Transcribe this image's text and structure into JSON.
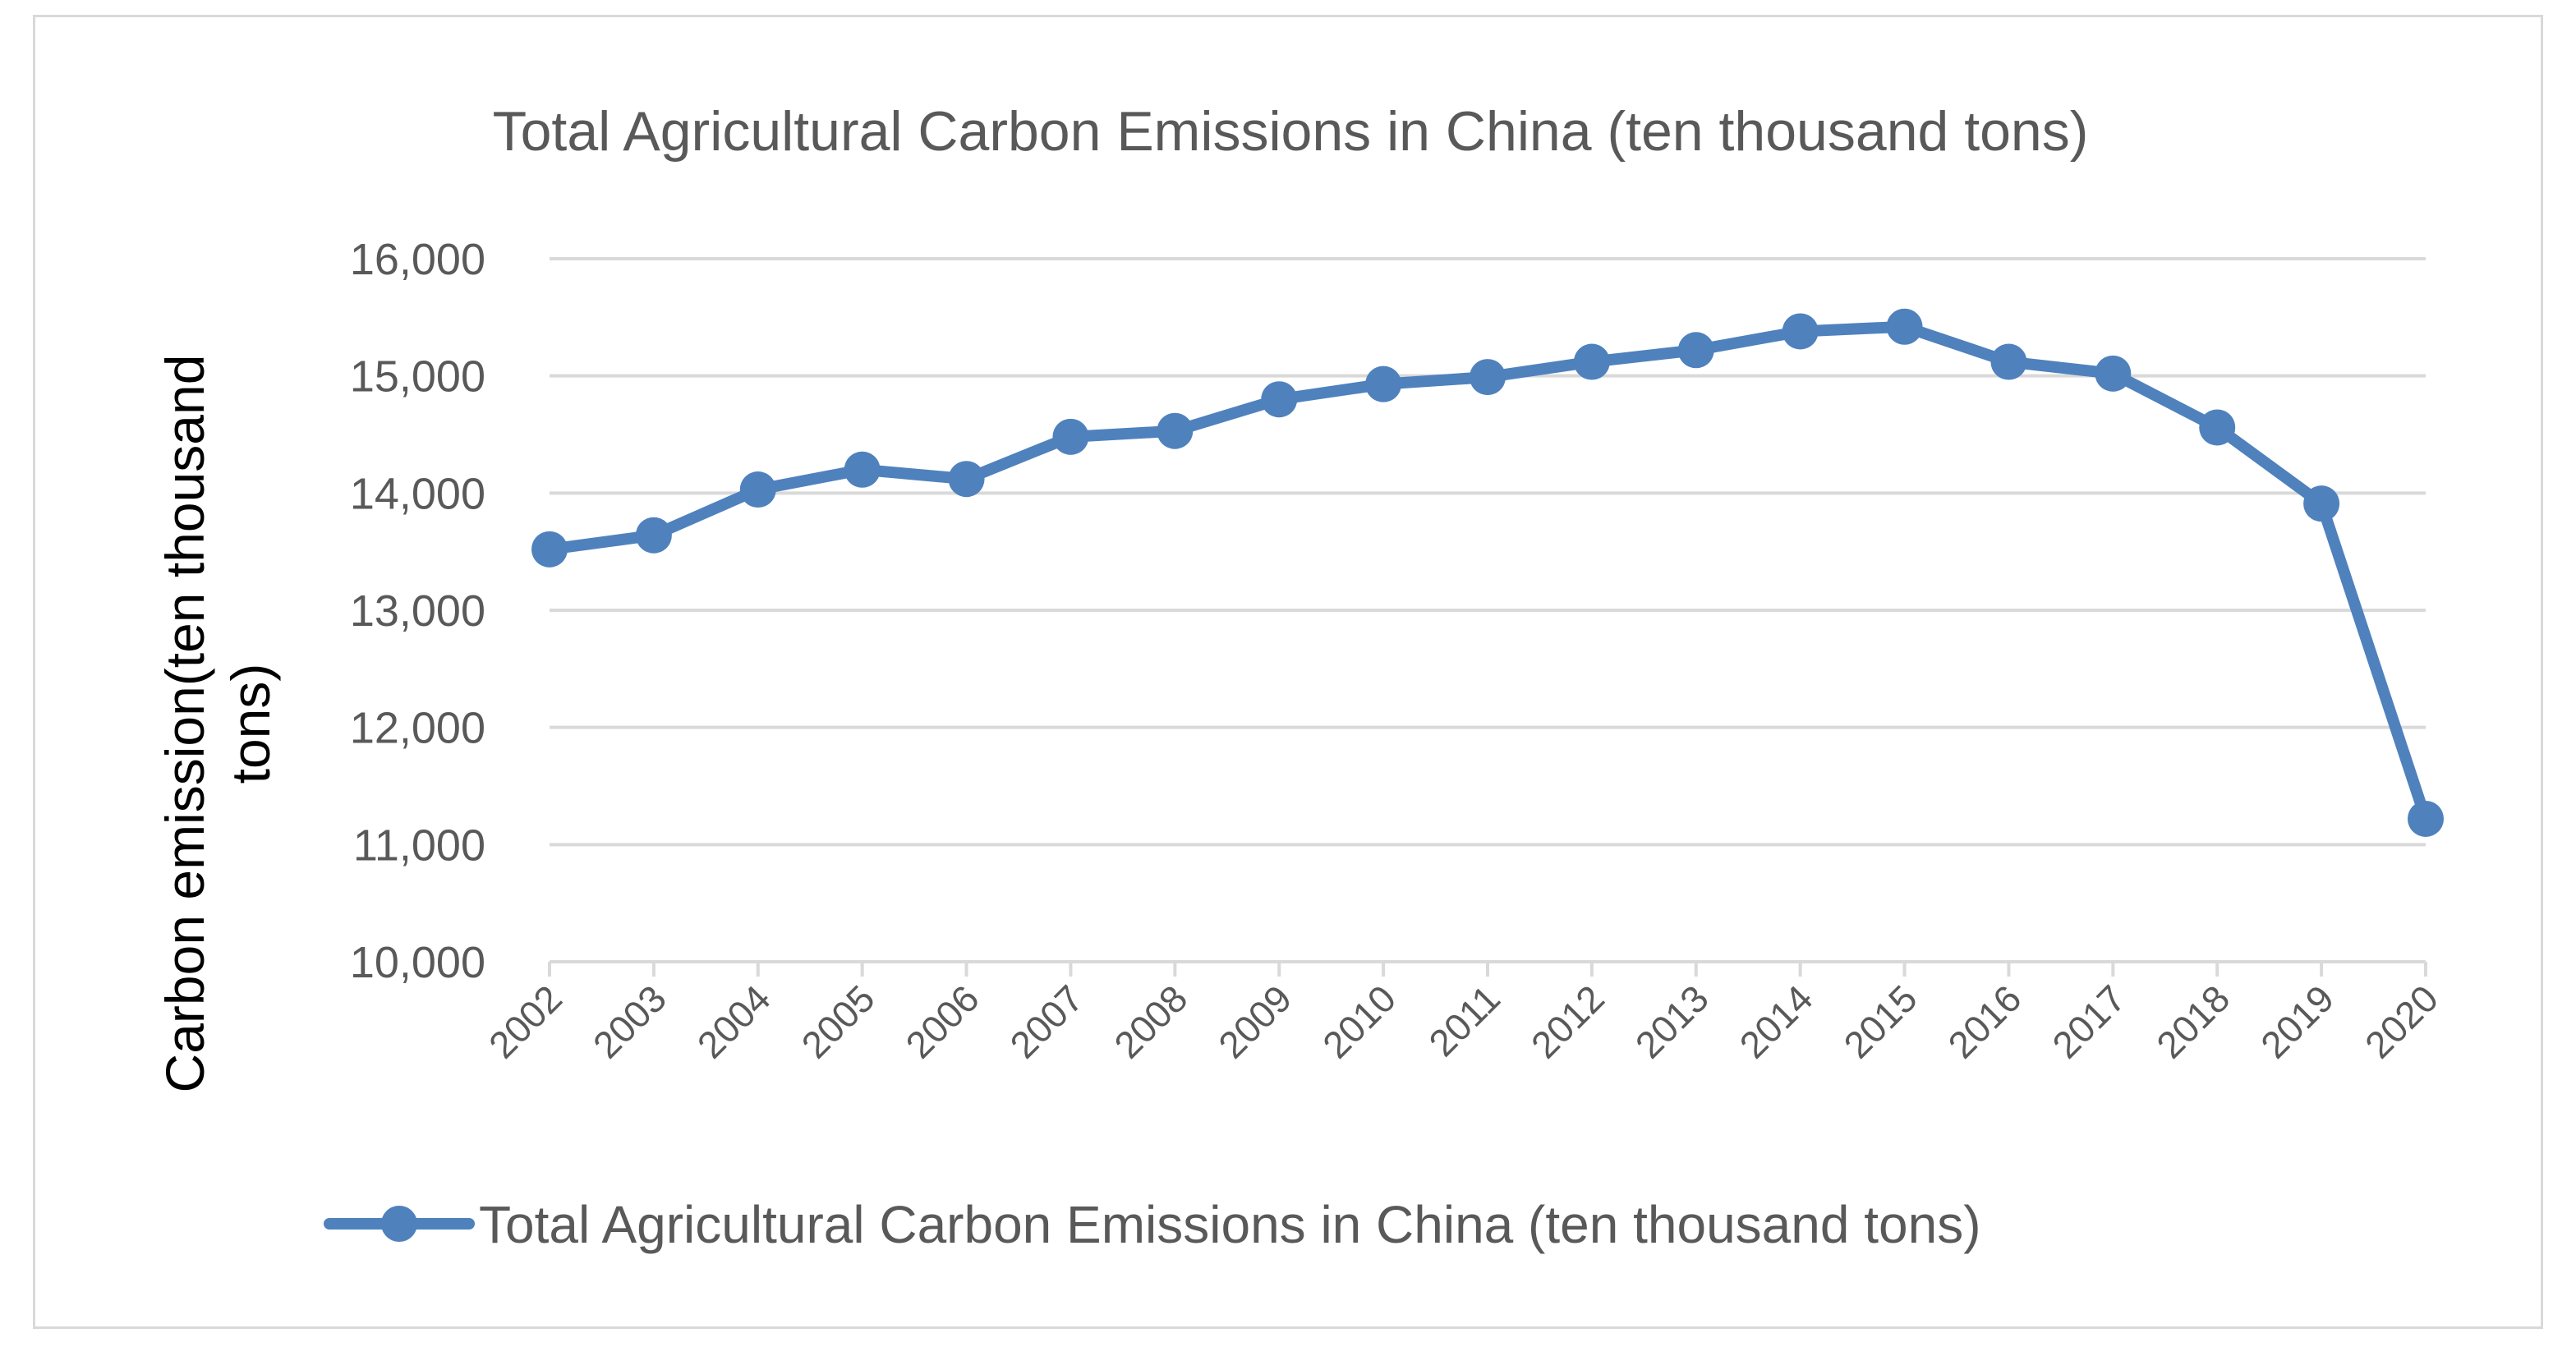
{
  "chart_data": {
    "type": "line",
    "title": "Total Agricultural Carbon Emissions in China (ten thousand tons)",
    "xlabel": "",
    "ylabel_lines": [
      "Carbon emission(ten thousand",
      "tons)"
    ],
    "ylim": [
      10000,
      16000
    ],
    "yticks": [
      10000,
      11000,
      12000,
      13000,
      14000,
      15000,
      16000
    ],
    "ytick_labels": [
      "10,000",
      "11,000",
      "12,000",
      "13,000",
      "14,000",
      "15,000",
      "16,000"
    ],
    "grid": true,
    "legend_position": "bottom",
    "categories": [
      "2002",
      "2003",
      "2004",
      "2005",
      "2006",
      "2007",
      "2008",
      "2009",
      "2010",
      "2011",
      "2012",
      "2013",
      "2014",
      "2015",
      "2016",
      "2017",
      "2018",
      "2019",
      "2020"
    ],
    "series": [
      {
        "name": "Total Agricultural Carbon Emissions in China (ten thousand tons)",
        "color": "#4f81bd",
        "values": [
          13520,
          13640,
          14030,
          14200,
          14120,
          14480,
          14530,
          14800,
          14930,
          14990,
          15120,
          15220,
          15380,
          15420,
          15120,
          15020,
          14560,
          13910,
          11220
        ]
      }
    ]
  },
  "colors": {
    "gridline": "#d9d9d9",
    "axis": "#d9d9d9",
    "series": "#4f81bd",
    "text": "#595959"
  }
}
